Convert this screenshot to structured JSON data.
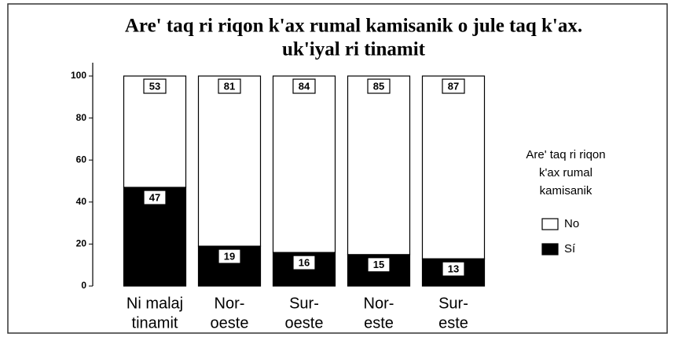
{
  "chart_data": {
    "type": "stacked-bar",
    "title": [
      "Are' taq ri riqon k'ax rumal kamisanik o jule taq k'ax.",
      "uk'iyal ri tinamit"
    ],
    "categories": [
      [
        "Ni malaj",
        "tinamit"
      ],
      [
        "Nor-",
        "oeste"
      ],
      [
        "Sur-",
        "oeste"
      ],
      [
        "Nor-",
        "este"
      ],
      [
        "Sur-",
        "este"
      ]
    ],
    "series": [
      {
        "name": "Sí",
        "color": "#000000",
        "values": [
          47,
          19,
          16,
          15,
          13
        ]
      },
      {
        "name": "No",
        "color": "#ffffff",
        "values": [
          53,
          81,
          84,
          85,
          87
        ]
      }
    ],
    "ylim": [
      0,
      100
    ],
    "yticks": [
      0,
      20,
      40,
      60,
      80,
      100
    ],
    "legend_title": [
      "Are' taq ri riqon",
      "k'ax rumal",
      "kamisanik"
    ],
    "legend_position": "right"
  }
}
